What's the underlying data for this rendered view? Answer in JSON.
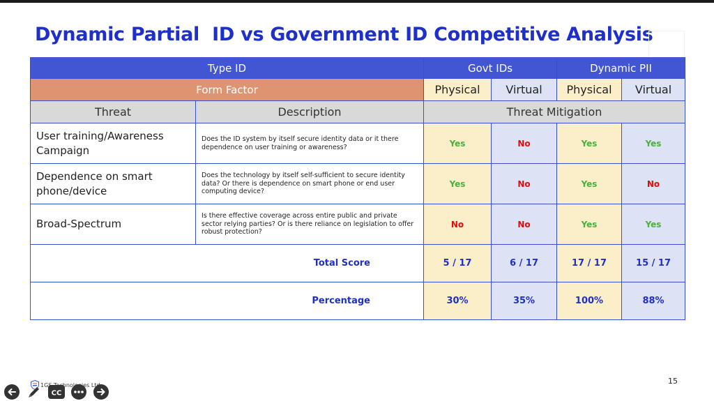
{
  "title": "Dynamic Partial  ID vs Government ID Competitive Analysis",
  "table": {
    "header1": {
      "type_id": "Type ID",
      "govt": "Govt IDs",
      "dynamic": "Dynamic PII"
    },
    "header2": {
      "form_factor": "Form Factor",
      "cols": [
        "Physical",
        "Virtual",
        "Physical",
        "Virtual"
      ]
    },
    "header3": {
      "threat": "Threat",
      "description": "Description",
      "mitigation": "Threat Mitigation"
    },
    "rows": [
      {
        "threat": "User training/Awareness Campaign",
        "description": "Does the ID system by itself secure identity data or it there dependence on user training or awareness?",
        "values": [
          "Yes",
          "No",
          "Yes",
          "Yes"
        ]
      },
      {
        "threat": "Dependence on smart phone/device",
        "description": "Does the technology by itself self-sufficient to secure identity data? Or there is dependence on smart phone or end user computing device?",
        "values": [
          "Yes",
          "No",
          "Yes",
          "No"
        ]
      },
      {
        "threat": "Broad-Spectrum",
        "description": "Is there effective coverage across entire public and private sector relying parties? Or is there reliance on legislation to offer robust protection?",
        "values": [
          "No",
          "No",
          "Yes",
          "Yes"
        ]
      }
    ],
    "total": {
      "label": "Total Score",
      "values": [
        "5 / 17",
        "6 / 17",
        "17 / 17",
        "15 / 17"
      ]
    },
    "percentage": {
      "label": "Percentage",
      "values": [
        "30%",
        "35%",
        "100%",
        "88%"
      ]
    }
  },
  "footer": {
    "company": "1GS Technologies Ltd",
    "page_number": "15"
  },
  "controls": [
    {
      "name": "previous-slide-button",
      "icon": "arrow-left-icon"
    },
    {
      "name": "pen-tool-button",
      "icon": "pen-icon"
    },
    {
      "name": "captions-button",
      "icon": "cc-icon",
      "label": "CC"
    },
    {
      "name": "more-options-button",
      "icon": "more-icon"
    },
    {
      "name": "next-slide-button",
      "icon": "arrow-right-icon"
    }
  ],
  "colors": {
    "title": "#1f2fc9",
    "header": "#4255d3",
    "form_factor": "#df9471",
    "govt_bg": "#fbefc9",
    "dynamic_bg": "#dde3f5",
    "yes": "#4caf3e",
    "no": "#e00d0d"
  }
}
